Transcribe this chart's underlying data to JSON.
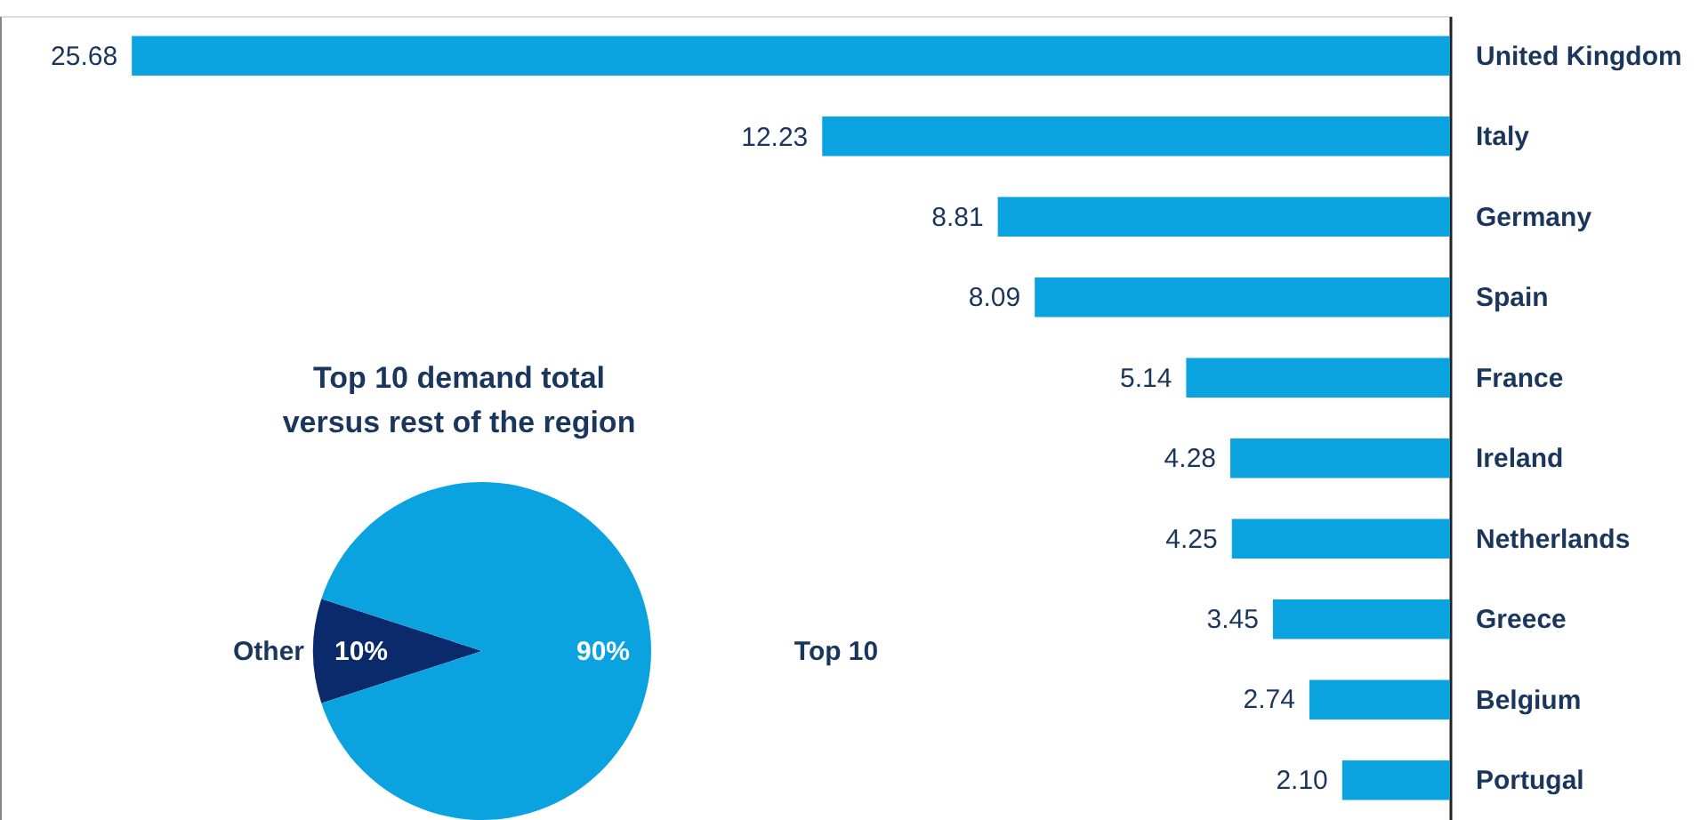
{
  "chart_data": [
    {
      "type": "bar",
      "orientation": "horizontal",
      "categories": [
        "United Kingdom",
        "Italy",
        "Germany",
        "Spain",
        "France",
        "Ireland",
        "Netherlands",
        "Greece",
        "Belgium",
        "Portugal"
      ],
      "values": [
        25.68,
        12.23,
        8.81,
        8.09,
        5.14,
        4.28,
        4.25,
        3.45,
        2.74,
        2.1
      ],
      "value_labels": [
        "25.68",
        "12.23",
        "8.81",
        "8.09",
        "5.14",
        "4.28",
        "4.25",
        "3.45",
        "2.74",
        "2.10"
      ],
      "color": "#0aa3e0"
    },
    {
      "type": "pie",
      "title": "Top 10 demand total\nversus rest of the region",
      "categories": [
        "Other",
        "Top 10"
      ],
      "values": [
        10,
        90
      ],
      "colors": [
        "#0b2a6b",
        "#0aa3e0"
      ],
      "value_labels": [
        "10%",
        "90%"
      ]
    }
  ]
}
